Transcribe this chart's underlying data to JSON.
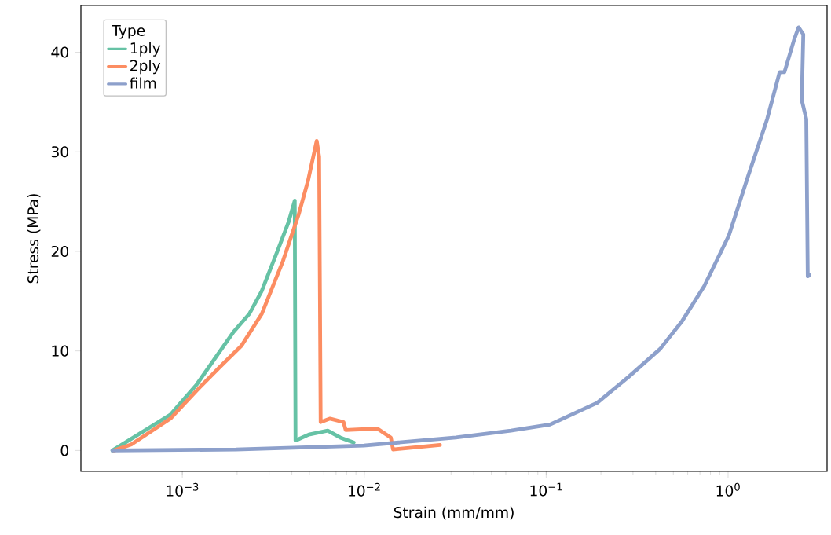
{
  "chart_data": {
    "type": "line",
    "xlabel": "Strain (mm/mm)",
    "ylabel": "Stress (MPa)",
    "legend_title": "Type",
    "log": "x",
    "legend": "top left",
    "marker": "none",
    "line_style": "solid",
    "xlim": [
      0.000277,
      3.5
    ],
    "ylim": [
      -2.1,
      44.7
    ],
    "xticks": [
      {
        "value": 0.001,
        "label": "10$^{−3}$"
      },
      {
        "value": 0.01,
        "label": "10$^{−2}$"
      },
      {
        "value": 0.1,
        "label": "10$^{−1}$"
      },
      {
        "value": 1,
        "label": "10$^{0}$"
      }
    ],
    "yticks": [
      0,
      10,
      20,
      30,
      40
    ],
    "series": [
      {
        "name": "1ply",
        "color": "#66c2a5",
        "x": [
          0.000413,
          0.00086,
          0.001196,
          0.00191,
          0.00233,
          0.00273,
          0.00333,
          0.00383,
          0.00415,
          0.00419,
          0.00496,
          0.0063,
          0.00738,
          0.00875
        ],
        "values": [
          0,
          3.6,
          6.6,
          11.9,
          13.7,
          16.0,
          20.0,
          22.9,
          25.1,
          1.0,
          1.6,
          2.0,
          1.3,
          0.8
        ]
      },
      {
        "name": "2ply",
        "color": "#fc8d62",
        "x": [
          0.000421,
          0.000524,
          0.00086,
          0.001196,
          0.00161,
          0.00211,
          0.00273,
          0.00357,
          0.00436,
          0.00491,
          0.00548,
          0.00565,
          0.00576,
          0.00649,
          0.00769,
          0.00791,
          0.0118,
          0.014,
          0.0144,
          0.0261
        ],
        "values": [
          0,
          0.6,
          3.2,
          6.0,
          8.4,
          10.5,
          13.7,
          19.0,
          23.7,
          27.1,
          31.1,
          29.5,
          2.85,
          3.2,
          2.85,
          2.05,
          2.2,
          1.3,
          0.1,
          0.55
        ]
      },
      {
        "name": "film",
        "color": "#8da0cb",
        "x": [
          0.000413,
          0.00197,
          0.00995,
          0.0319,
          0.064,
          0.105,
          0.191,
          0.284,
          0.423,
          0.559,
          0.739,
          1.01,
          1.29,
          1.64,
          1.92,
          2.04,
          2.3,
          2.44,
          2.59,
          2.54,
          2.69,
          2.74,
          2.8
        ],
        "values": [
          0,
          0.1,
          0.5,
          1.3,
          2.0,
          2.6,
          4.8,
          7.4,
          10.2,
          13.0,
          16.5,
          21.6,
          27.6,
          33.3,
          38.0,
          38.0,
          41.2,
          42.5,
          41.8,
          35.2,
          33.3,
          17.5,
          17.6
        ]
      }
    ]
  }
}
